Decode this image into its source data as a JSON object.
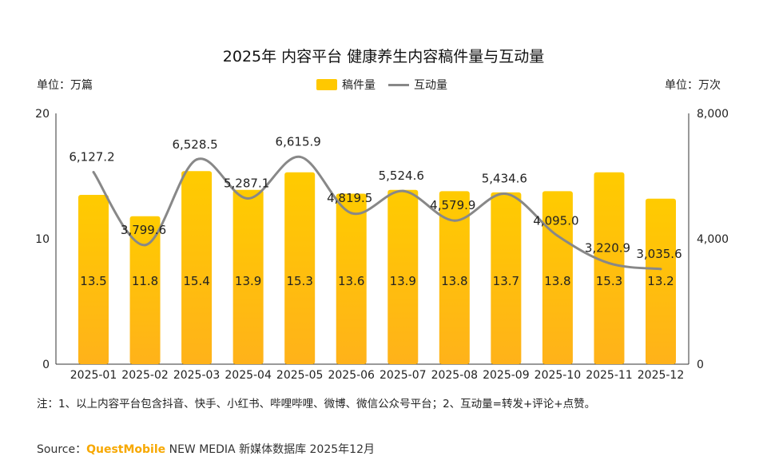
{
  "chart_data": {
    "type": "bar+line",
    "title": "2025年 内容平台 健康养生内容稿件量与互动量",
    "left_unit": "单位：万篇",
    "right_unit": "单位：万次",
    "categories": [
      "2025-01",
      "2025-02",
      "2025-03",
      "2025-04",
      "2025-05",
      "2025-06",
      "2025-07",
      "2025-08",
      "2025-09",
      "2025-10",
      "2025-11",
      "2025-12"
    ],
    "series": [
      {
        "name": "稿件量",
        "type": "bar",
        "axis": "left",
        "color": "#ffc800",
        "values": [
          13.5,
          11.8,
          15.4,
          13.9,
          15.3,
          13.6,
          13.9,
          13.8,
          13.7,
          13.8,
          15.3,
          13.2
        ],
        "labels": [
          "13.5",
          "11.8",
          "15.4",
          "13.9",
          "15.3",
          "13.6",
          "13.9",
          "13.8",
          "13.7",
          "13.8",
          "15.3",
          "13.2"
        ]
      },
      {
        "name": "互动量",
        "type": "line",
        "axis": "right",
        "color": "#888888",
        "values": [
          6127.2,
          3799.6,
          6528.5,
          5287.1,
          6615.9,
          4819.5,
          5524.6,
          4579.9,
          5434.6,
          4095.0,
          3220.9,
          3035.6
        ],
        "labels": [
          "6,127.2",
          "3,799.6",
          "6,528.5",
          "5,287.1",
          "6,615.9",
          "4,819.5",
          "5,524.6",
          "4,579.9",
          "5,434.6",
          "4,095.0",
          "3,220.9",
          "3,035.6"
        ]
      }
    ],
    "ylim_left": [
      0,
      20
    ],
    "yticks_left": [
      "0",
      "10",
      "20"
    ],
    "ylim_right": [
      0,
      8000
    ],
    "yticks_right": [
      "0",
      "4,000",
      "8,000"
    ],
    "grid": false,
    "legend_position": "top"
  },
  "note": "注：1、以上内容平台包含抖音、快手、小红书、哔哩哔哩、微博、微信公众号平台；2、互动量=转发+评论+点赞。",
  "source": {
    "prefix": "Source：",
    "brand": "QuestMobile",
    "rest": " NEW MEDIA 新媒体数据库 2025年12月"
  }
}
